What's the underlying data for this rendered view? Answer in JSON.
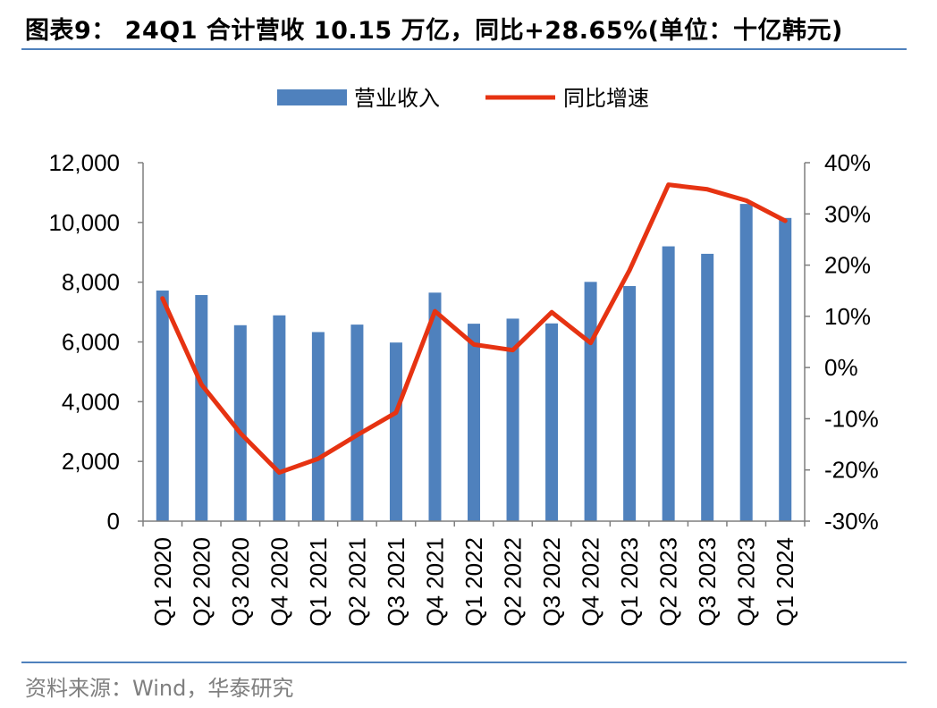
{
  "header": {
    "title": "图表9： 24Q1 合计营收 10.15 万亿，同比+28.65%(单位：十亿韩元)"
  },
  "footer": {
    "source": "资料来源：Wind，华泰研究"
  },
  "colors": {
    "bar": "#4f81bd",
    "line": "#e63312",
    "rule": "#4f81bd",
    "axis": "#7f7f7f",
    "source_text": "#7f7f7f"
  },
  "chart_data": {
    "type": "bar",
    "title": "",
    "categories": [
      "Q1 2020",
      "Q2 2020",
      "Q3 2020",
      "Q4 2020",
      "Q1 2021",
      "Q2 2021",
      "Q3 2021",
      "Q4 2021",
      "Q1 2022",
      "Q2 2022",
      "Q3 2022",
      "Q4 2022",
      "Q1 2023",
      "Q2 2023",
      "Q3 2023",
      "Q4 2023",
      "Q1 2024"
    ],
    "series": [
      {
        "name": "营业收入",
        "type": "bar",
        "axis": "left",
        "values": [
          7720,
          7570,
          6560,
          6890,
          6330,
          6580,
          5980,
          7650,
          6610,
          6780,
          6620,
          8010,
          7870,
          9200,
          8950,
          10620,
          10150
        ]
      },
      {
        "name": "同比增速",
        "type": "line",
        "axis": "right",
        "values": [
          13.5,
          -3.3,
          -12.8,
          -20.5,
          -17.8,
          -13.2,
          -8.8,
          11.0,
          4.5,
          3.4,
          10.8,
          4.8,
          19.0,
          35.7,
          34.8,
          32.6,
          28.65
        ]
      }
    ],
    "y_left": {
      "lim": [
        0,
        12000
      ],
      "ticks": [
        "0",
        "2,000",
        "4,000",
        "6,000",
        "8,000",
        "10,000",
        "12,000"
      ],
      "tick_values": [
        0,
        2000,
        4000,
        6000,
        8000,
        10000,
        12000
      ]
    },
    "y_right": {
      "lim": [
        -30,
        40
      ],
      "ticks": [
        "-30%",
        "-20%",
        "-10%",
        "0%",
        "10%",
        "20%",
        "30%",
        "40%"
      ],
      "tick_values": [
        -30,
        -20,
        -10,
        0,
        10,
        20,
        30,
        40
      ]
    },
    "legend": "top-center",
    "grid": false
  }
}
